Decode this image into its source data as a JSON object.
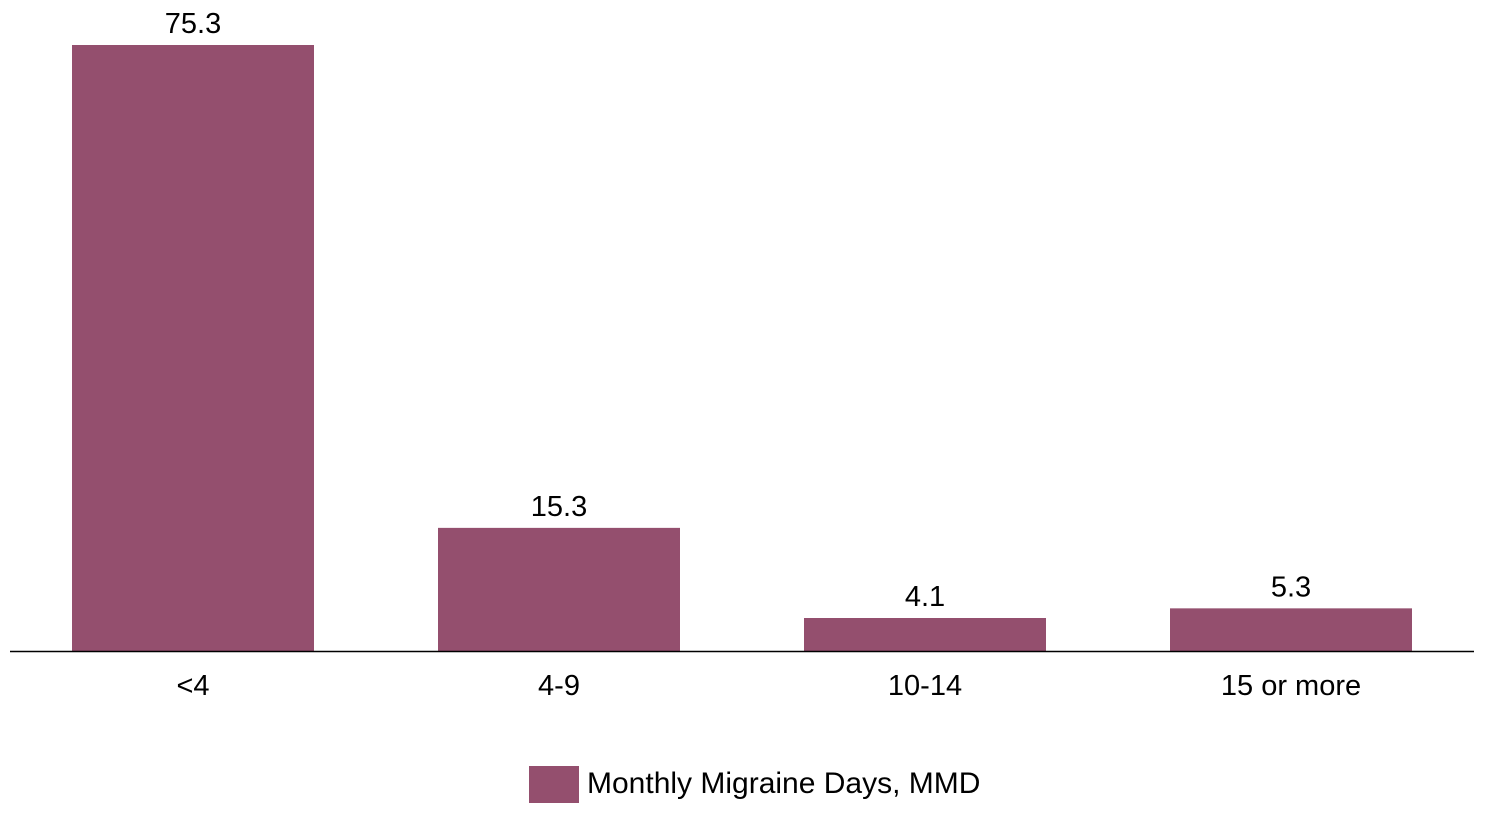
{
  "chart_data": {
    "type": "bar",
    "title": "",
    "xlabel": "",
    "ylabel": "",
    "categories": [
      "<4",
      "4-9",
      "10-14",
      "15 or more"
    ],
    "series": [
      {
        "name": "Monthly Migraine Days, MMD",
        "values": [
          75.3,
          15.3,
          4.1,
          5.3
        ],
        "color": "#944F6E"
      }
    ],
    "data_labels": [
      "75.3",
      "15.3",
      "4.1",
      "5.3"
    ],
    "ylim": [
      0,
      75.3
    ],
    "grid": false,
    "y_axis_visible": false,
    "legend": {
      "position": "bottom-center",
      "label": "Monthly Migraine Days, MMD"
    }
  }
}
